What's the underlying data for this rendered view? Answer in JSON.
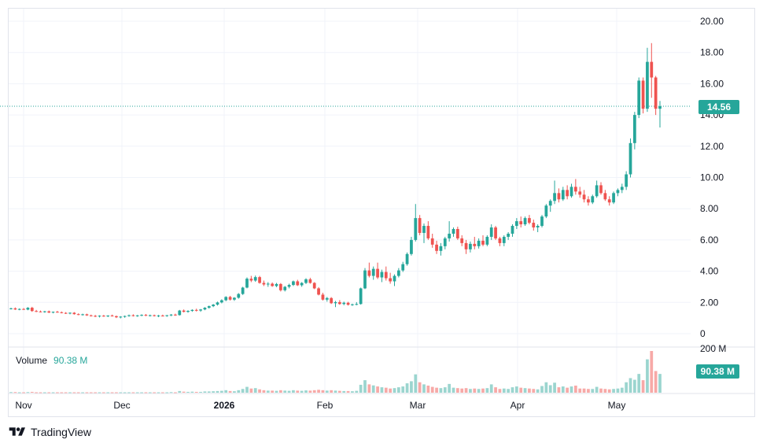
{
  "chart_data": {
    "type": "candlestick",
    "price_axis": {
      "ticks": [
        "20.00",
        "18.00",
        "16.00",
        "14.00",
        "12.00",
        "10.00",
        "8.00",
        "6.00",
        "4.00",
        "2.00",
        "0"
      ],
      "min": 0,
      "max": 20
    },
    "volume_axis": {
      "tick": "200 M",
      "max": 200
    },
    "time_axis": {
      "ticks": [
        "Nov",
        "Dec",
        "2026",
        "Feb",
        "Mar",
        "Apr",
        "May"
      ]
    },
    "last_price": "14.56",
    "last_volume": "90.38 M",
    "volume_label": "Volume",
    "volume_value": "90.38 M",
    "colors": {
      "up": "#26a69a",
      "down": "#ef5350",
      "up_vol": "#9bd5cf",
      "down_vol": "#f7a9a7",
      "grid": "#f0f3fa"
    },
    "candles": [
      [
        1.6,
        1.66,
        1.55,
        1.62
      ],
      [
        1.62,
        1.68,
        1.52,
        1.55
      ],
      [
        1.55,
        1.62,
        1.5,
        1.58
      ],
      [
        1.58,
        1.64,
        1.52,
        1.54
      ],
      [
        1.54,
        1.7,
        1.5,
        1.66
      ],
      [
        1.66,
        1.72,
        1.4,
        1.45
      ],
      [
        1.45,
        1.52,
        1.38,
        1.42
      ],
      [
        1.42,
        1.48,
        1.36,
        1.4
      ],
      [
        1.4,
        1.46,
        1.34,
        1.43
      ],
      [
        1.43,
        1.48,
        1.32,
        1.35
      ],
      [
        1.35,
        1.42,
        1.3,
        1.4
      ],
      [
        1.4,
        1.46,
        1.34,
        1.37
      ],
      [
        1.37,
        1.42,
        1.3,
        1.33
      ],
      [
        1.33,
        1.38,
        1.26,
        1.3
      ],
      [
        1.3,
        1.36,
        1.24,
        1.34
      ],
      [
        1.34,
        1.38,
        1.22,
        1.25
      ],
      [
        1.25,
        1.3,
        1.18,
        1.22
      ],
      [
        1.22,
        1.28,
        1.16,
        1.24
      ],
      [
        1.24,
        1.28,
        1.14,
        1.17
      ],
      [
        1.17,
        1.22,
        1.1,
        1.14
      ],
      [
        1.14,
        1.2,
        1.06,
        1.1
      ],
      [
        1.1,
        1.18,
        1.04,
        1.15
      ],
      [
        1.15,
        1.2,
        1.08,
        1.12
      ],
      [
        1.12,
        1.18,
        1.06,
        1.16
      ],
      [
        1.16,
        1.22,
        1.1,
        1.12
      ],
      [
        1.12,
        1.16,
        1.0,
        1.05
      ],
      [
        1.05,
        1.12,
        0.98,
        1.09
      ],
      [
        1.09,
        1.16,
        1.02,
        1.13
      ],
      [
        1.13,
        1.22,
        1.08,
        1.18
      ],
      [
        1.18,
        1.24,
        1.1,
        1.14
      ],
      [
        1.14,
        1.2,
        1.08,
        1.17
      ],
      [
        1.17,
        1.24,
        1.12,
        1.2
      ],
      [
        1.2,
        1.26,
        1.12,
        1.16
      ],
      [
        1.16,
        1.22,
        1.1,
        1.18
      ],
      [
        1.18,
        1.22,
        1.1,
        1.14
      ],
      [
        1.14,
        1.2,
        1.06,
        1.16
      ],
      [
        1.16,
        1.22,
        1.1,
        1.13
      ],
      [
        1.13,
        1.2,
        1.08,
        1.18
      ],
      [
        1.18,
        1.26,
        1.12,
        1.22
      ],
      [
        1.22,
        1.28,
        1.14,
        1.19
      ],
      [
        1.19,
        1.52,
        1.16,
        1.48
      ],
      [
        1.48,
        1.55,
        1.36,
        1.4
      ],
      [
        1.4,
        1.5,
        1.34,
        1.46
      ],
      [
        1.46,
        1.56,
        1.4,
        1.52
      ],
      [
        1.52,
        1.6,
        1.42,
        1.48
      ],
      [
        1.48,
        1.58,
        1.4,
        1.55
      ],
      [
        1.55,
        1.7,
        1.5,
        1.66
      ],
      [
        1.66,
        1.8,
        1.6,
        1.76
      ],
      [
        1.76,
        1.9,
        1.7,
        1.86
      ],
      [
        1.86,
        2.05,
        1.8,
        2.0
      ],
      [
        2.0,
        2.2,
        1.94,
        2.14
      ],
      [
        2.14,
        2.4,
        2.08,
        2.35
      ],
      [
        2.35,
        2.42,
        2.12,
        2.18
      ],
      [
        2.18,
        2.34,
        2.1,
        2.3
      ],
      [
        2.3,
        2.6,
        2.24,
        2.54
      ],
      [
        2.54,
        3.0,
        2.48,
        2.95
      ],
      [
        2.95,
        3.6,
        2.9,
        3.52
      ],
      [
        3.52,
        3.7,
        3.3,
        3.4
      ],
      [
        3.4,
        3.72,
        3.32,
        3.62
      ],
      [
        3.62,
        3.7,
        3.2,
        3.25
      ],
      [
        3.25,
        3.4,
        3.05,
        3.15
      ],
      [
        3.15,
        3.3,
        3.0,
        3.2
      ],
      [
        3.2,
        3.28,
        3.0,
        3.05
      ],
      [
        3.05,
        3.25,
        2.98,
        3.18
      ],
      [
        3.18,
        3.24,
        2.7,
        2.78
      ],
      [
        2.78,
        3.05,
        2.7,
        3.0
      ],
      [
        3.0,
        3.2,
        2.9,
        3.12
      ],
      [
        3.12,
        3.4,
        3.05,
        3.35
      ],
      [
        3.35,
        3.45,
        3.05,
        3.1
      ],
      [
        3.1,
        3.3,
        3.0,
        3.25
      ],
      [
        3.25,
        3.55,
        3.18,
        3.48
      ],
      [
        3.48,
        3.58,
        3.2,
        3.25
      ],
      [
        3.25,
        3.3,
        2.85,
        2.9
      ],
      [
        2.9,
        2.98,
        2.45,
        2.5
      ],
      [
        2.5,
        2.62,
        2.12,
        2.18
      ],
      [
        2.18,
        2.35,
        2.05,
        2.28
      ],
      [
        2.28,
        2.34,
        1.9,
        1.95
      ],
      [
        1.95,
        2.1,
        1.7,
        2.02
      ],
      [
        2.02,
        2.15,
        1.85,
        1.9
      ],
      [
        1.9,
        2.05,
        1.82,
        1.98
      ],
      [
        1.98,
        2.04,
        1.8,
        1.85
      ],
      [
        1.85,
        1.92,
        1.78,
        1.88
      ],
      [
        1.88,
        2.02,
        1.82,
        1.9
      ],
      [
        1.9,
        2.95,
        1.86,
        2.9
      ],
      [
        2.9,
        4.2,
        2.85,
        4.05
      ],
      [
        4.05,
        4.55,
        3.6,
        3.7
      ],
      [
        3.7,
        4.3,
        3.45,
        4.15
      ],
      [
        4.15,
        4.55,
        3.5,
        3.6
      ],
      [
        3.6,
        4.1,
        3.3,
        3.95
      ],
      [
        3.95,
        4.3,
        3.4,
        3.55
      ],
      [
        3.55,
        3.9,
        3.2,
        3.35
      ],
      [
        3.35,
        3.8,
        3.05,
        3.7
      ],
      [
        3.7,
        4.2,
        3.6,
        4.05
      ],
      [
        4.05,
        4.6,
        3.95,
        4.45
      ],
      [
        4.45,
        5.2,
        4.35,
        5.1
      ],
      [
        5.1,
        6.2,
        5.0,
        6.0
      ],
      [
        6.0,
        8.3,
        5.9,
        7.4
      ],
      [
        7.4,
        7.6,
        6.3,
        6.45
      ],
      [
        6.45,
        7.05,
        5.8,
        6.9
      ],
      [
        6.9,
        7.2,
        6.0,
        6.1
      ],
      [
        6.1,
        6.4,
        5.5,
        5.7
      ],
      [
        5.7,
        5.95,
        5.1,
        5.3
      ],
      [
        5.3,
        5.8,
        5.0,
        5.6
      ],
      [
        5.6,
        6.2,
        5.4,
        6.1
      ],
      [
        6.1,
        7.2,
        5.9,
        6.4
      ],
      [
        6.4,
        6.8,
        6.2,
        6.7
      ],
      [
        6.7,
        6.85,
        6.0,
        6.1
      ],
      [
        6.1,
        6.3,
        5.6,
        5.8
      ],
      [
        5.8,
        6.0,
        5.1,
        5.4
      ],
      [
        5.4,
        5.9,
        5.2,
        5.75
      ],
      [
        5.75,
        6.2,
        5.4,
        5.6
      ],
      [
        5.6,
        6.1,
        5.45,
        5.95
      ],
      [
        5.95,
        6.3,
        5.6,
        5.7
      ],
      [
        5.7,
        6.3,
        5.6,
        6.2
      ],
      [
        6.2,
        7.0,
        6.0,
        6.8
      ],
      [
        6.8,
        6.9,
        6.0,
        6.1
      ],
      [
        6.1,
        6.2,
        5.6,
        5.8
      ],
      [
        5.8,
        6.3,
        5.6,
        6.2
      ],
      [
        6.2,
        6.5,
        6.0,
        6.4
      ],
      [
        6.4,
        7.0,
        6.2,
        6.9
      ],
      [
        6.9,
        7.4,
        6.7,
        7.2
      ],
      [
        7.2,
        7.5,
        6.8,
        7.0
      ],
      [
        7.0,
        7.5,
        6.9,
        7.4
      ],
      [
        7.4,
        7.6,
        7.0,
        7.1
      ],
      [
        7.1,
        7.3,
        6.6,
        6.8
      ],
      [
        6.8,
        7.0,
        6.5,
        6.9
      ],
      [
        6.9,
        7.6,
        6.8,
        7.5
      ],
      [
        7.5,
        8.3,
        7.4,
        8.2
      ],
      [
        8.2,
        8.6,
        7.8,
        8.5
      ],
      [
        8.5,
        9.8,
        8.3,
        9.0
      ],
      [
        9.0,
        9.3,
        8.4,
        8.6
      ],
      [
        8.6,
        9.4,
        8.5,
        9.2
      ],
      [
        9.2,
        9.5,
        8.6,
        8.8
      ],
      [
        8.8,
        9.6,
        8.7,
        9.4
      ],
      [
        9.4,
        9.9,
        8.9,
        9.1
      ],
      [
        9.1,
        9.4,
        8.7,
        8.9
      ],
      [
        8.9,
        9.2,
        8.4,
        8.6
      ],
      [
        8.6,
        8.8,
        8.2,
        8.4
      ],
      [
        8.4,
        8.9,
        8.3,
        8.8
      ],
      [
        8.8,
        9.8,
        8.7,
        9.5
      ],
      [
        9.5,
        9.7,
        8.9,
        9.0
      ],
      [
        9.0,
        9.2,
        8.5,
        8.6
      ],
      [
        8.6,
        8.8,
        8.2,
        8.4
      ],
      [
        8.4,
        9.1,
        8.3,
        9.0
      ],
      [
        9.0,
        9.3,
        8.8,
        9.2
      ],
      [
        9.2,
        9.6,
        9.0,
        9.4
      ],
      [
        9.4,
        10.4,
        9.2,
        10.2
      ],
      [
        10.2,
        12.5,
        10.0,
        12.2
      ],
      [
        12.2,
        14.2,
        11.8,
        14.0
      ],
      [
        14.0,
        16.4,
        13.8,
        16.2
      ],
      [
        16.2,
        16.4,
        14.1,
        14.4
      ],
      [
        14.4,
        18.3,
        14.2,
        17.4
      ],
      [
        17.4,
        18.6,
        15.1,
        16.4
      ],
      [
        16.4,
        16.5,
        14.0,
        14.4
      ],
      [
        14.4,
        14.9,
        13.2,
        14.56
      ]
    ],
    "volumes": [
      [
        3,
        1
      ],
      [
        3,
        0
      ],
      [
        2,
        1
      ],
      [
        2,
        0
      ],
      [
        3,
        1
      ],
      [
        4,
        0
      ],
      [
        2,
        0
      ],
      [
        2,
        0
      ],
      [
        2,
        1
      ],
      [
        2,
        0
      ],
      [
        2,
        1
      ],
      [
        2,
        0
      ],
      [
        2,
        0
      ],
      [
        2,
        0
      ],
      [
        2,
        1
      ],
      [
        2,
        0
      ],
      [
        2,
        0
      ],
      [
        2,
        1
      ],
      [
        2,
        0
      ],
      [
        2,
        0
      ],
      [
        2,
        0
      ],
      [
        2,
        1
      ],
      [
        2,
        0
      ],
      [
        2,
        1
      ],
      [
        2,
        0
      ],
      [
        2,
        0
      ],
      [
        2,
        1
      ],
      [
        2,
        1
      ],
      [
        2,
        1
      ],
      [
        2,
        0
      ],
      [
        2,
        1
      ],
      [
        2,
        1
      ],
      [
        2,
        0
      ],
      [
        2,
        1
      ],
      [
        2,
        0
      ],
      [
        2,
        1
      ],
      [
        2,
        0
      ],
      [
        2,
        1
      ],
      [
        3,
        1
      ],
      [
        2,
        0
      ],
      [
        8,
        1
      ],
      [
        5,
        0
      ],
      [
        4,
        1
      ],
      [
        5,
        1
      ],
      [
        4,
        0
      ],
      [
        4,
        1
      ],
      [
        6,
        1
      ],
      [
        6,
        1
      ],
      [
        7,
        1
      ],
      [
        8,
        1
      ],
      [
        9,
        1
      ],
      [
        12,
        1
      ],
      [
        8,
        0
      ],
      [
        7,
        1
      ],
      [
        12,
        1
      ],
      [
        18,
        1
      ],
      [
        28,
        1
      ],
      [
        20,
        0
      ],
      [
        22,
        1
      ],
      [
        16,
        0
      ],
      [
        12,
        0
      ],
      [
        10,
        1
      ],
      [
        10,
        0
      ],
      [
        9,
        1
      ],
      [
        12,
        0
      ],
      [
        10,
        1
      ],
      [
        9,
        1
      ],
      [
        12,
        1
      ],
      [
        10,
        0
      ],
      [
        9,
        1
      ],
      [
        11,
        1
      ],
      [
        10,
        0
      ],
      [
        12,
        0
      ],
      [
        14,
        0
      ],
      [
        12,
        0
      ],
      [
        10,
        1
      ],
      [
        12,
        0
      ],
      [
        10,
        1
      ],
      [
        9,
        0
      ],
      [
        8,
        1
      ],
      [
        8,
        0
      ],
      [
        7,
        1
      ],
      [
        9,
        1
      ],
      [
        38,
        1
      ],
      [
        60,
        1
      ],
      [
        40,
        0
      ],
      [
        35,
        1
      ],
      [
        30,
        0
      ],
      [
        26,
        1
      ],
      [
        24,
        0
      ],
      [
        20,
        0
      ],
      [
        22,
        1
      ],
      [
        26,
        1
      ],
      [
        30,
        1
      ],
      [
        45,
        1
      ],
      [
        55,
        1
      ],
      [
        88,
        1
      ],
      [
        50,
        0
      ],
      [
        40,
        1
      ],
      [
        34,
        0
      ],
      [
        28,
        0
      ],
      [
        24,
        0
      ],
      [
        22,
        1
      ],
      [
        26,
        1
      ],
      [
        42,
        1
      ],
      [
        24,
        1
      ],
      [
        22,
        0
      ],
      [
        20,
        0
      ],
      [
        22,
        0
      ],
      [
        18,
        1
      ],
      [
        20,
        0
      ],
      [
        18,
        1
      ],
      [
        20,
        0
      ],
      [
        22,
        1
      ],
      [
        40,
        1
      ],
      [
        26,
        0
      ],
      [
        18,
        0
      ],
      [
        20,
        1
      ],
      [
        18,
        1
      ],
      [
        26,
        1
      ],
      [
        30,
        1
      ],
      [
        24,
        0
      ],
      [
        22,
        1
      ],
      [
        20,
        0
      ],
      [
        18,
        0
      ],
      [
        16,
        1
      ],
      [
        32,
        1
      ],
      [
        50,
        1
      ],
      [
        36,
        1
      ],
      [
        48,
        1
      ],
      [
        26,
        0
      ],
      [
        30,
        1
      ],
      [
        24,
        0
      ],
      [
        30,
        1
      ],
      [
        34,
        0
      ],
      [
        20,
        0
      ],
      [
        20,
        0
      ],
      [
        18,
        0
      ],
      [
        18,
        1
      ],
      [
        28,
        1
      ],
      [
        20,
        0
      ],
      [
        18,
        0
      ],
      [
        16,
        0
      ],
      [
        18,
        1
      ],
      [
        20,
        1
      ],
      [
        24,
        1
      ],
      [
        50,
        1
      ],
      [
        70,
        1
      ],
      [
        62,
        1
      ],
      [
        90,
        1
      ],
      [
        60,
        0
      ],
      [
        160,
        1
      ],
      [
        200,
        0
      ],
      [
        104,
        0
      ],
      [
        90,
        1
      ]
    ]
  },
  "brand": {
    "name": "TradingView"
  },
  "layout_note_colors": {
    "accent": "#26a69a"
  }
}
